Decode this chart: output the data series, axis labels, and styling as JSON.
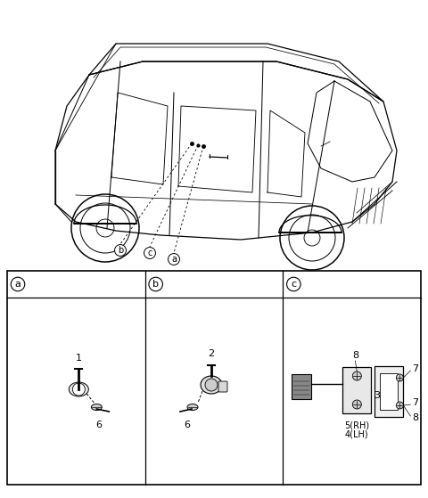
{
  "bg_color": "#ffffff",
  "black": "#000000",
  "gray_light": "#cccccc",
  "gray_med": "#999999",
  "gray_dark": "#555555",
  "table_border_lw": 1.0,
  "car_lw": 0.9,
  "section_labels": [
    "a",
    "b",
    "c"
  ],
  "part_labels_a": [
    "1",
    "6"
  ],
  "part_labels_b": [
    "2",
    "6"
  ],
  "part_labels_c": [
    "8",
    "7",
    "7",
    "3",
    "5(RH)",
    "4(LH)",
    "8"
  ]
}
